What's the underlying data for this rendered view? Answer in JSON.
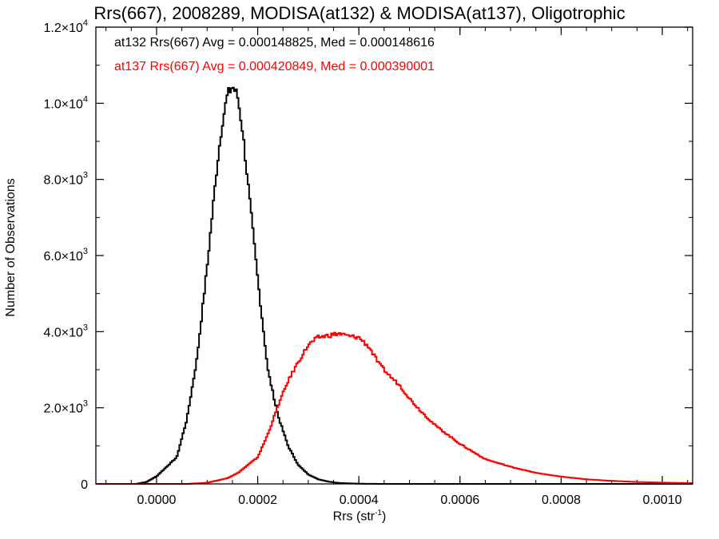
{
  "chart_data": {
    "type": "line",
    "title": "Rrs(667), 2008289, MODISA(at132) & MODISA(at137), Oligotrophic",
    "xlabel": "Rrs (str",
    "xlabel_superscript": "-1",
    "xlabel_suffix": ")",
    "ylabel": "Number of Observations",
    "xlim": [
      -0.00012,
      0.00106
    ],
    "ylim": [
      0,
      12000
    ],
    "xticks": [
      0.0,
      0.0002,
      0.0004,
      0.0006,
      0.0008,
      0.001
    ],
    "xtick_labels": [
      "0.0000",
      "0.0002",
      "0.0004",
      "0.0006",
      "0.0008",
      "0.0010"
    ],
    "yticks": [
      0,
      2000,
      4000,
      6000,
      8000,
      10000,
      12000
    ],
    "ytick_labels": [
      {
        "mantissa": "0",
        "exp": ""
      },
      {
        "mantissa": "2.0×10",
        "exp": "3"
      },
      {
        "mantissa": "4.0×10",
        "exp": "3"
      },
      {
        "mantissa": "6.0×10",
        "exp": "3"
      },
      {
        "mantissa": "8.0×10",
        "exp": "3"
      },
      {
        "mantissa": "1.0×10",
        "exp": "4"
      },
      {
        "mantissa": "1.2×10",
        "exp": "4"
      }
    ],
    "grid": false,
    "annotations": [
      {
        "text": "at132 Rrs(667) Avg = 0.000148825, Med = 0.000148616",
        "color": "#000000"
      },
      {
        "text": "at137 Rrs(667) Avg = 0.000420849, Med = 0.000390001",
        "color": "#ff0000"
      }
    ],
    "series": [
      {
        "color": "#000000",
        "x": [
          -4e-05,
          -2e-05,
          0.0,
          4e-05,
          6e-05,
          8e-05,
          0.0001,
          0.00012,
          0.00013,
          0.00014,
          0.00015,
          0.00016,
          0.00017,
          0.00018,
          0.0002,
          0.00022,
          0.00024,
          0.00026,
          0.00028,
          0.0003,
          0.00032,
          0.00034,
          0.00036,
          0.0004,
          0.00045
        ],
        "y": [
          0,
          50,
          200,
          700,
          1700,
          3300,
          5700,
          8400,
          9500,
          10200,
          10450,
          10200,
          9300,
          8000,
          5400,
          3000,
          1800,
          1000,
          500,
          250,
          120,
          60,
          25,
          5,
          0
        ]
      },
      {
        "color": "#ff0000",
        "x": [
          6e-05,
          0.0001,
          0.00014,
          0.00016,
          0.0002,
          0.00022,
          0.00024,
          0.00026,
          0.00028,
          0.0003,
          0.00032,
          0.00034,
          0.00036,
          0.00038,
          0.0004,
          0.00042,
          0.00044,
          0.00046,
          0.00048,
          0.0005,
          0.00052,
          0.00055,
          0.0006,
          0.00065,
          0.0007,
          0.00075,
          0.0008,
          0.00085,
          0.0009,
          0.00095,
          0.001,
          0.00106
        ],
        "y": [
          0,
          30,
          150,
          280,
          700,
          1300,
          2050,
          2700,
          3200,
          3650,
          3850,
          3900,
          3950,
          3880,
          3850,
          3600,
          3150,
          2850,
          2600,
          2250,
          1950,
          1550,
          1050,
          650,
          450,
          290,
          190,
          120,
          80,
          50,
          35,
          20
        ]
      }
    ]
  }
}
